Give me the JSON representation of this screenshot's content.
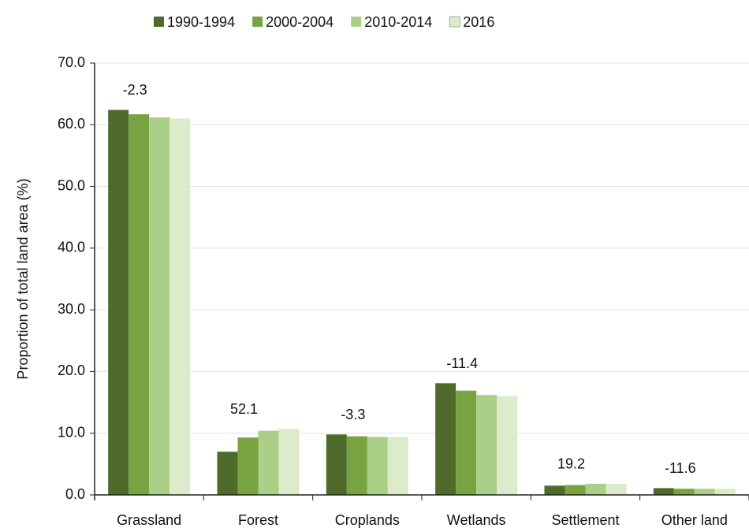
{
  "chart_data": {
    "type": "bar",
    "y_label": "Proportion of total land area (%)",
    "categories": [
      "Grassland",
      "Forest",
      "Croplands",
      "Wetlands",
      "Settlement",
      "Other land"
    ],
    "series": [
      {
        "name": "1990-1994",
        "color": "#4e6b2b",
        "values": [
          62.4,
          7.0,
          9.8,
          18.1,
          1.5,
          1.1
        ]
      },
      {
        "name": "2000-2004",
        "color": "#77a341",
        "values": [
          61.7,
          9.3,
          9.5,
          16.9,
          1.6,
          1.0
        ]
      },
      {
        "name": "2010-2014",
        "color": "#aacf86",
        "values": [
          61.2,
          10.4,
          9.4,
          16.2,
          1.8,
          1.0
        ]
      },
      {
        "name": "2016",
        "color": "#dcebca",
        "values": [
          61.0,
          10.7,
          9.4,
          16.0,
          1.8,
          1.0
        ]
      }
    ],
    "group_labels": [
      -2.3,
      52.1,
      -3.3,
      -11.4,
      19.2,
      -11.6
    ],
    "ylim": [
      0,
      70
    ],
    "yticks": [
      {
        "value": 0,
        "label": "0.0"
      },
      {
        "value": 10,
        "label": "10.0"
      },
      {
        "value": 20,
        "label": "20.0"
      },
      {
        "value": 30,
        "label": "30.0"
      },
      {
        "value": 40,
        "label": "40.0"
      },
      {
        "value": 50,
        "label": "50.0"
      },
      {
        "value": 60,
        "label": "60.0"
      },
      {
        "value": 70,
        "label": "70.0"
      }
    ],
    "grid": true
  }
}
